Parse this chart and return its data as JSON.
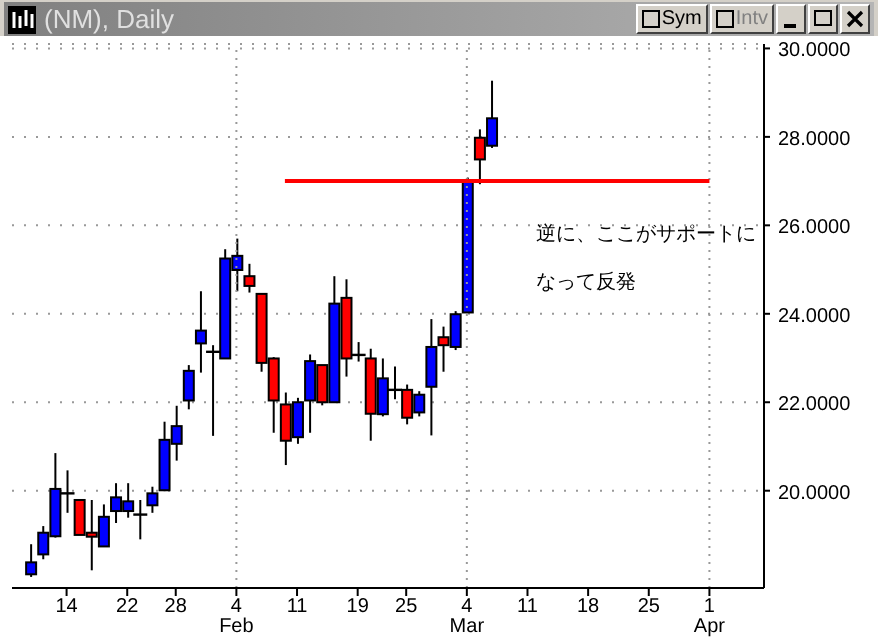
{
  "chart_data": {
    "type": "candlestick",
    "title": "(NM), Daily",
    "annotations": [
      "逆に、ここがサポートになって反発",
      "Sym",
      "Intv"
    ],
    "categories": [
      null,
      null,
      null,
      null,
      "14",
      null,
      null,
      null,
      null,
      "22",
      null,
      null,
      null,
      "28",
      null,
      null,
      null,
      null,
      "4 Feb",
      null,
      null,
      null,
      null,
      "11",
      null,
      null,
      null,
      null,
      "19",
      null,
      null,
      null,
      "25",
      null,
      null,
      null,
      null,
      "4 Mar",
      null,
      null,
      null,
      null,
      "11",
      null,
      null,
      null,
      null,
      "18",
      null,
      null,
      null,
      null,
      "25",
      null,
      null,
      null,
      null,
      "1 Apr",
      null,
      null,
      null,
      null
    ],
    "ohlc": [
      null,
      [
        18.11,
        18.79,
        18.05,
        18.38
      ],
      [
        18.56,
        19.2,
        18.45,
        19.05
      ],
      [
        18.97,
        20.85,
        18.94,
        20.04
      ],
      [
        19.94,
        20.46,
        19.5,
        19.94
      ],
      [
        19.79,
        19.79,
        19.0,
        19.0
      ],
      [
        19.05,
        19.79,
        18.2,
        18.96
      ],
      [
        18.74,
        19.69,
        18.74,
        19.41
      ],
      [
        19.54,
        20.17,
        19.27,
        19.85
      ],
      [
        19.54,
        20.17,
        19.39,
        19.76
      ],
      [
        19.46,
        19.79,
        18.9,
        19.46
      ],
      [
        19.67,
        20.09,
        19.5,
        19.94
      ],
      [
        20.01,
        21.56,
        19.99,
        21.15
      ],
      [
        21.06,
        21.92,
        20.68,
        21.46
      ],
      [
        22.04,
        22.84,
        21.84,
        22.71
      ],
      [
        23.33,
        24.51,
        22.67,
        23.62
      ],
      [
        23.14,
        23.29,
        21.24,
        23.14
      ],
      [
        22.99,
        25.46,
        22.99,
        25.25
      ],
      [
        24.99,
        25.7,
        24.51,
        25.31
      ],
      [
        24.85,
        25.13,
        24.48,
        24.63
      ],
      [
        24.45,
        24.45,
        22.69,
        22.89
      ],
      [
        22.99,
        23.02,
        21.31,
        22.04
      ],
      [
        21.95,
        22.22,
        20.58,
        21.13
      ],
      [
        21.21,
        22.1,
        21.06,
        22.0
      ],
      [
        22.04,
        23.08,
        21.31,
        22.93
      ],
      [
        22.84,
        22.84,
        21.93,
        22.0
      ],
      [
        22.0,
        24.85,
        22.0,
        24.23
      ],
      [
        24.36,
        24.78,
        22.58,
        22.99
      ],
      [
        23.07,
        23.36,
        22.92,
        23.07
      ],
      [
        22.99,
        23.21,
        21.13,
        21.74
      ],
      [
        21.73,
        22.99,
        21.68,
        22.54
      ],
      [
        22.28,
        22.81,
        22.07,
        22.28
      ],
      [
        22.28,
        22.4,
        21.5,
        21.65
      ],
      [
        21.77,
        22.25,
        21.68,
        22.17
      ],
      [
        22.35,
        23.88,
        21.25,
        23.25
      ],
      [
        23.47,
        23.71,
        22.69,
        23.29
      ],
      [
        23.25,
        24.06,
        23.18,
        23.99
      ],
      [
        24.03,
        27.08,
        24.03,
        26.98
      ],
      [
        27.98,
        28.17,
        26.93,
        27.49
      ],
      [
        27.8,
        29.27,
        27.75,
        28.42
      ],
      null,
      null,
      null,
      null,
      null,
      null,
      null,
      null,
      null,
      null,
      null,
      null,
      null,
      null,
      null,
      null,
      null,
      null,
      null,
      null,
      null,
      null
    ],
    "colors": [
      null,
      "#0000ff",
      "#0000ff",
      "#0000ff",
      "#000000",
      "#ff0000",
      "#ff0000",
      "#0000ff",
      "#0000ff",
      "#0000ff",
      "#000000",
      "#0000ff",
      "#0000ff",
      "#0000ff",
      "#0000ff",
      "#0000ff",
      "#000000",
      "#0000ff",
      "#0000ff",
      "#ff0000",
      "#ff0000",
      "#ff0000",
      "#ff0000",
      "#0000ff",
      "#0000ff",
      "#ff0000",
      "#0000ff",
      "#ff0000",
      "#000000",
      "#ff0000",
      "#0000ff",
      "#000000",
      "#ff0000",
      "#0000ff",
      "#0000ff",
      "#ff0000",
      "#0000ff",
      "#0000ff",
      "#ff0000",
      "#0000ff",
      null,
      null,
      null,
      null,
      null,
      null,
      null,
      null,
      null,
      null,
      null,
      null,
      null,
      null,
      null,
      null,
      null,
      null,
      null,
      null,
      null,
      null
    ],
    "series": [
      {
        "type": "line",
        "color": "#ff0000",
        "values": [
          null,
          null,
          null,
          null,
          null,
          null,
          null,
          null,
          null,
          null,
          null,
          null,
          null,
          null,
          null,
          null,
          null,
          null,
          null,
          null,
          null,
          null,
          27,
          27,
          27,
          27,
          27,
          27,
          27,
          27,
          27,
          27,
          27,
          27,
          27,
          27,
          27,
          27,
          27,
          27,
          27,
          27,
          27,
          27,
          27,
          27,
          27,
          27,
          27,
          27,
          27,
          27,
          27,
          27,
          27,
          27,
          27,
          27,
          null,
          null,
          null,
          null
        ]
      }
    ],
    "ylim": [
      17.8,
      30.1
    ],
    "yticks": [
      {
        "value": 20,
        "label": "20.0000"
      },
      {
        "value": 22,
        "label": "22.0000"
      },
      {
        "value": 24,
        "label": "24.0000"
      },
      {
        "value": 26,
        "label": "26.0000"
      },
      {
        "value": 28,
        "label": "28.0000"
      },
      {
        "value": 30,
        "label": "30.0000"
      }
    ],
    "grid": true
  }
}
